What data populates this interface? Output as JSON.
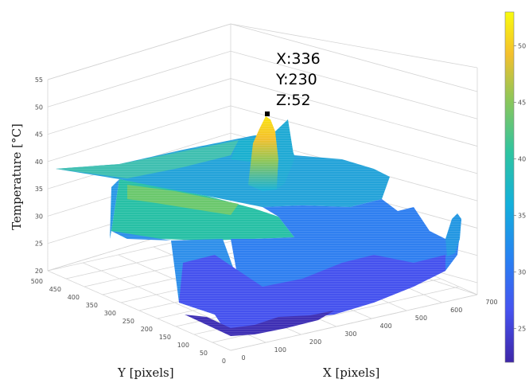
{
  "chart_data": {
    "type": "surface3d",
    "xlabel": "X [pixels]",
    "ylabel": "Y [pixels]",
    "zlabel": "Temperature [°C]",
    "xlim": [
      0,
      700
    ],
    "ylim": [
      0,
      500
    ],
    "zlim": [
      20,
      55
    ],
    "x_ticks": [
      "100",
      "200",
      "300",
      "400",
      "500",
      "600",
      "700"
    ],
    "y_ticks": [
      "0",
      "50",
      "100",
      "150",
      "200",
      "250",
      "300",
      "350",
      "400",
      "450",
      "500"
    ],
    "z_ticks": [
      "20",
      "25",
      "30",
      "35",
      "40",
      "45",
      "50",
      "55"
    ],
    "colorbar": {
      "colormap": "parula",
      "range": [
        22,
        53
      ],
      "ticks": [
        "25",
        "30",
        "35",
        "40",
        "45",
        "50"
      ]
    },
    "grid": true,
    "datatip": {
      "x": 336,
      "y": 230,
      "z": 52,
      "x_text": "X:336",
      "y_text": "Y:230",
      "z_text": "Z:52"
    },
    "surface_features": {
      "back_plateau_temp": 38,
      "front_plateau_temp": 35,
      "basin_temp": 24,
      "right_ridge_peak_temp": 35
    }
  }
}
